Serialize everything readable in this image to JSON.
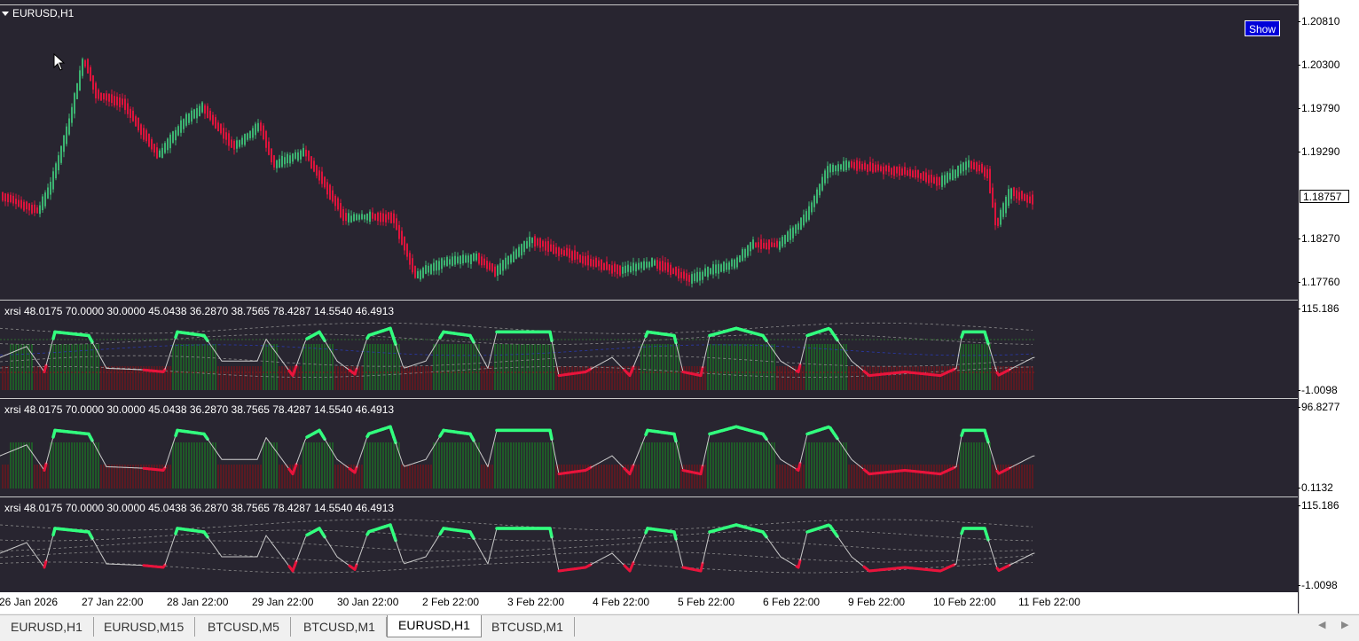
{
  "chart": {
    "symbol_title": "EURUSD,H1",
    "show_button": "Show",
    "current_price": "1.18757",
    "price_axis": [
      "1.20810",
      "1.20300",
      "1.19790",
      "1.19290",
      "1.18270",
      "1.17760"
    ],
    "colors": {
      "background": "#282530",
      "bull_candle": "#3cb371",
      "bear_candle": "#dc143c",
      "rsi_up": "#32ff7e",
      "rsi_down": "#e8143c",
      "rsi_neutral": "#c8c8c8"
    }
  },
  "indicators": [
    {
      "title": "xrsi  48.0175 70.0000 30.0000 45.0438 36.2870 38.7565 78.4287 14.5540 46.4913",
      "axis_top": "115.186",
      "axis_bottom": "-1.0098"
    },
    {
      "title": "xrsi  48.0175 70.0000 30.0000 45.0438 36.2870 38.7565 78.4287 14.5540 46.4913",
      "axis_top": "96.8277",
      "axis_bottom": "0.1132"
    },
    {
      "title": "xrsi  48.0175 70.0000 30.0000 45.0438 36.2870 38.7565 78.4287 14.5540 46.4913",
      "axis_top": "115.186",
      "axis_bottom": "-1.0098"
    }
  ],
  "time_axis": [
    "26 Jan 2026",
    "27 Jan 22:00",
    "28 Jan 22:00",
    "29 Jan 22:00",
    "30 Jan 22:00",
    "2 Feb 22:00",
    "3 Feb 22:00",
    "4 Feb 22:00",
    "5 Feb 22:00",
    "6 Feb 22:00",
    "9 Feb 22:00",
    "10 Feb 22:00",
    "11 Feb 22:00"
  ],
  "tabs": [
    {
      "label": "EURUSD,H1",
      "active": false
    },
    {
      "label": "EURUSD,M15",
      "active": false
    },
    {
      "label": "BTCUSD,M5",
      "active": false
    },
    {
      "label": "BTCUSD,M1",
      "active": false
    },
    {
      "label": "EURUSD,H1",
      "active": true
    },
    {
      "label": "BTCUSD,M1",
      "active": false
    }
  ],
  "icons": {
    "cursor": "arrow-cursor-icon",
    "dropdown": "triangle-down-icon",
    "scroll_left": "chevron-left-icon",
    "scroll_right": "chevron-right-icon"
  }
}
